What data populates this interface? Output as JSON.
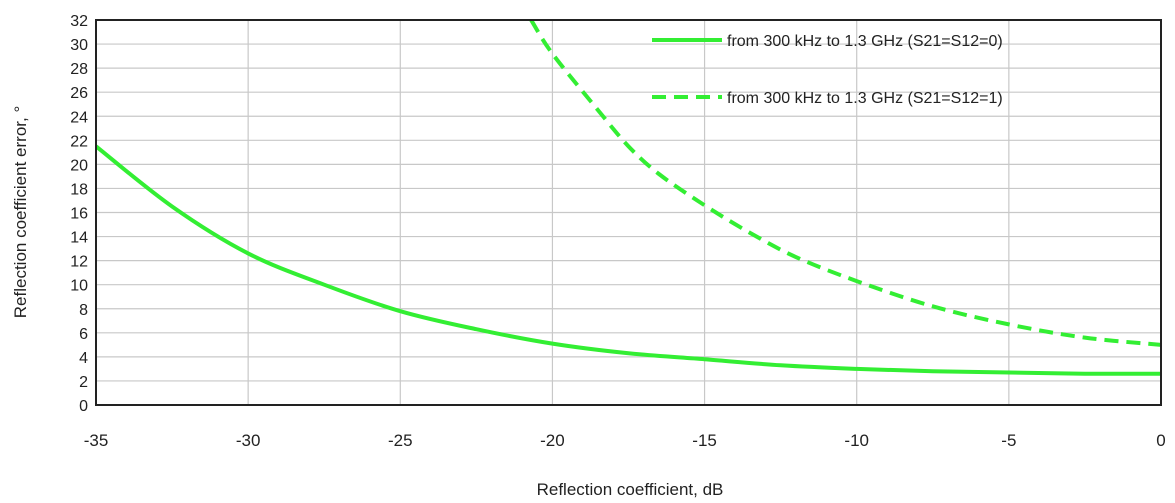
{
  "chart_data": {
    "type": "line",
    "title": "",
    "xlabel": "Reflection coefficient, dB",
    "ylabel": "Reflection coefficient error, °",
    "xlim": [
      -35,
      0
    ],
    "ylim": [
      0,
      32
    ],
    "xticks": [
      -35,
      -30,
      -25,
      -20,
      -15,
      -10,
      -5,
      0
    ],
    "yticks": [
      0,
      2,
      4,
      6,
      8,
      10,
      12,
      14,
      16,
      18,
      20,
      22,
      24,
      26,
      28,
      30,
      32
    ],
    "grid": true,
    "legend_position": "top-right",
    "colors": {
      "series": "#33ee33",
      "grid": "#c8c8c8",
      "frame": "#222222"
    },
    "series": [
      {
        "name": "from 300 kHz to 1.3 GHz (S21=S12=0)",
        "style": "solid",
        "x": [
          -35,
          -32.5,
          -30,
          -27.5,
          -25,
          -22.5,
          -20,
          -17.5,
          -15,
          -12.5,
          -10,
          -7.5,
          -5,
          -2.5,
          0
        ],
        "y": [
          21.5,
          16.5,
          12.6,
          10,
          7.8,
          6.3,
          5.1,
          4.3,
          3.8,
          3.3,
          3.0,
          2.8,
          2.7,
          2.6,
          2.6
        ]
      },
      {
        "name": "from 300 kHz to 1.3 GHz (S21=S12=1)",
        "style": "dashed",
        "x": [
          -20.7,
          -20,
          -18.5,
          -17.5,
          -16.5,
          -15,
          -13.5,
          -12,
          -10,
          -7.5,
          -5,
          -2.5,
          0
        ],
        "y": [
          32,
          29.2,
          24.5,
          21.5,
          19.2,
          16.6,
          14.3,
          12.3,
          10.3,
          8.2,
          6.7,
          5.6,
          5.0
        ]
      }
    ]
  }
}
